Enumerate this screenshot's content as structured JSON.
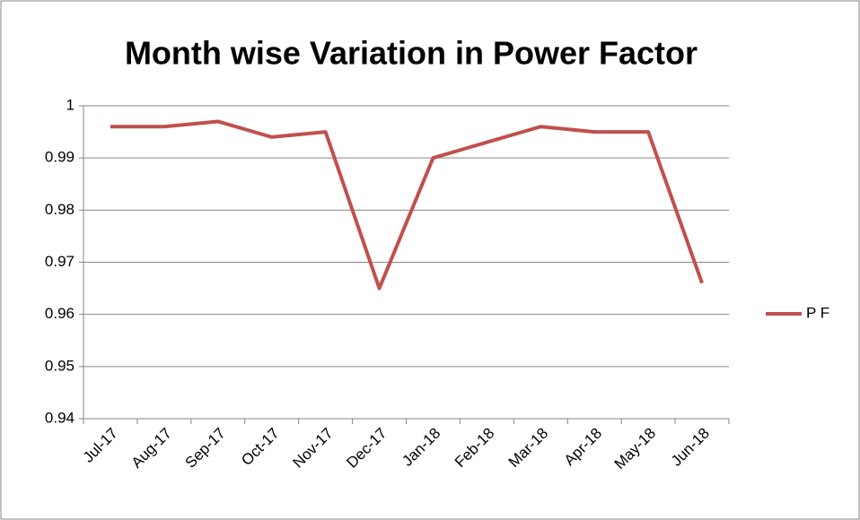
{
  "chart_data": {
    "type": "line",
    "title": "Month wise Variation in Power Factor",
    "categories": [
      "Jul-17",
      "Aug-17",
      "Sep-17",
      "Oct-17",
      "Nov-17",
      "Dec-17",
      "Jan-18",
      "Feb-18",
      "Mar-18",
      "Apr-18",
      "May-18",
      "Jun-18"
    ],
    "series": [
      {
        "name": "P F",
        "color": "#c0504d",
        "values": [
          0.996,
          0.996,
          0.997,
          0.994,
          0.995,
          0.965,
          0.99,
          0.993,
          0.996,
          0.995,
          0.995,
          0.966
        ]
      }
    ],
    "ylim": [
      0.94,
      1
    ],
    "yticks": [
      0.94,
      0.95,
      0.96,
      0.97,
      0.98,
      0.99,
      1
    ],
    "grid": true,
    "legend": "right"
  }
}
